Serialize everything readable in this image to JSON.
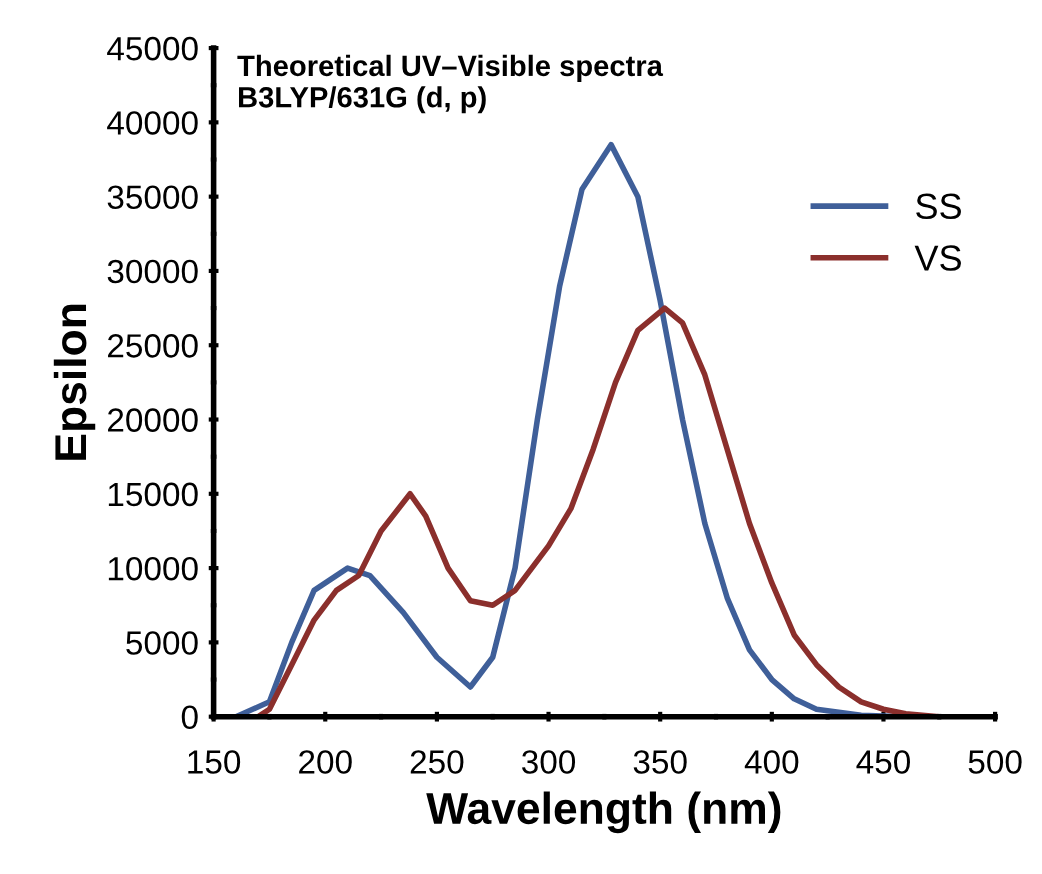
{
  "chart_data": {
    "type": "line",
    "title": "Theoretical UV–Visible spectra\nB3LYP/631G (d, p)",
    "xlabel": "Wavelength (nm)",
    "ylabel": "Epsilon",
    "xlim": [
      150,
      500
    ],
    "xticks": [
      150,
      200,
      250,
      300,
      350,
      400,
      450,
      500
    ],
    "ylim": [
      0,
      45000
    ],
    "yticks": [
      0,
      5000,
      10000,
      15000,
      20000,
      25000,
      30000,
      35000,
      40000,
      45000
    ],
    "grid": false,
    "legend": "right",
    "marker": "none",
    "line_style": "solid",
    "series": [
      {
        "name": "SS",
        "color": "#3f5f99",
        "x": [
          160,
          175,
          185,
          195,
          210,
          220,
          235,
          250,
          265,
          275,
          285,
          295,
          305,
          315,
          328,
          340,
          350,
          360,
          370,
          380,
          390,
          400,
          410,
          420,
          440,
          460,
          500
        ],
        "values": [
          0,
          1000,
          5000,
          8500,
          10000,
          9500,
          7000,
          4000,
          2000,
          4000,
          10000,
          20000,
          29000,
          35500,
          38500,
          35000,
          28000,
          20000,
          13000,
          8000,
          4500,
          2500,
          1200,
          500,
          100,
          0,
          0
        ]
      },
      {
        "name": "VS",
        "color": "#8b2f2c",
        "x": [
          160,
          170,
          175,
          185,
          195,
          205,
          215,
          225,
          238,
          245,
          255,
          265,
          275,
          285,
          300,
          310,
          320,
          330,
          340,
          352,
          360,
          370,
          380,
          390,
          400,
          410,
          420,
          430,
          440,
          450,
          460,
          475,
          500
        ],
        "values": [
          0,
          0,
          500,
          3500,
          6500,
          8500,
          9500,
          12500,
          15000,
          13500,
          10000,
          7800,
          7500,
          8500,
          11500,
          14000,
          18000,
          22500,
          26000,
          27500,
          26500,
          23000,
          18000,
          13000,
          9000,
          5500,
          3500,
          2000,
          1000,
          500,
          200,
          0,
          0
        ]
      }
    ]
  }
}
